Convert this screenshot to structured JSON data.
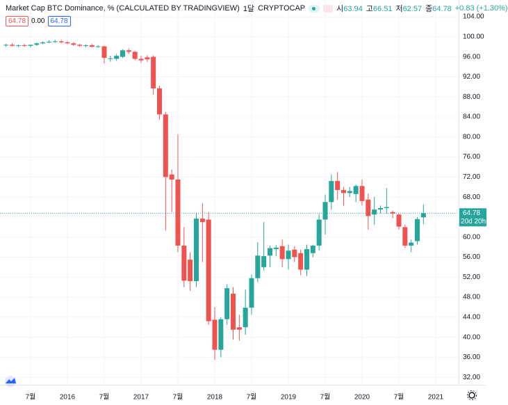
{
  "header": {
    "title": "Market Cap BTC Dominance, % (CALCULATED BY TRADINGVIEW)",
    "interval": "1달",
    "exchange": "CRYPTOCAP",
    "ohlc_labels": [
      "시",
      "고",
      "저",
      "종"
    ],
    "change": "+0.83 (+1.30%)",
    "zero": "0.00"
  },
  "chart_data": {
    "type": "candlestick",
    "up_color": "#26a69a",
    "down_color": "#ef5350",
    "grid": true,
    "countdown": "20d 20h",
    "x": [
      "2015-03",
      "2015-04",
      "2015-05",
      "2015-06",
      "2015-07",
      "2015-08",
      "2015-09",
      "2015-10",
      "2015-11",
      "2015-12",
      "2016-01",
      "2016-02",
      "2016-03",
      "2016-04",
      "2016-05",
      "2016-06",
      "2016-07",
      "2016-08",
      "2016-09",
      "2016-10",
      "2016-11",
      "2016-12",
      "2017-01",
      "2017-02",
      "2017-03",
      "2017-04",
      "2017-05",
      "2017-06",
      "2017-07",
      "2017-08",
      "2017-09",
      "2017-10",
      "2017-11",
      "2017-12",
      "2018-01",
      "2018-02",
      "2018-03",
      "2018-04",
      "2018-05",
      "2018-06",
      "2018-07",
      "2018-08",
      "2018-09",
      "2018-10",
      "2018-11",
      "2018-12",
      "2019-01",
      "2019-02",
      "2019-03",
      "2019-04",
      "2019-05",
      "2019-06",
      "2019-07",
      "2019-08",
      "2019-09",
      "2019-10",
      "2019-11",
      "2019-12",
      "2020-01",
      "2020-02",
      "2020-03",
      "2020-04",
      "2020-05",
      "2020-06",
      "2020-07",
      "2020-08",
      "2020-09",
      "2020-10",
      "2020-11"
    ],
    "open": [
      98.3,
      98.4,
      98.2,
      98.3,
      98.2,
      98.4,
      98.7,
      98.9,
      99.0,
      99.1,
      98.9,
      98.7,
      98.4,
      98.2,
      98.3,
      98.0,
      98.1,
      95.6,
      95.6,
      96.0,
      97.3,
      97.0,
      95.6,
      95.9,
      96.0,
      89.7,
      84.5,
      72.5,
      71.5,
      58.3,
      55.5,
      51.2,
      63.7,
      63.5,
      43.5,
      37.5,
      43.6,
      48.7,
      42.0,
      42.0,
      45.9,
      51.8,
      54.0,
      56.3,
      57.6,
      58.2,
      55.6,
      57.5,
      56.8,
      53.5,
      56.8,
      58.3,
      63.5,
      67.0,
      71.2,
      69.4,
      68.8,
      68.6,
      70.2,
      67.5,
      64.5,
      65.5,
      65.8,
      65.0,
      64.5,
      62.0,
      58.3,
      59.2,
      63.94
    ],
    "high": [
      98.6,
      98.7,
      98.5,
      98.6,
      98.5,
      98.9,
      99.1,
      99.3,
      99.4,
      99.4,
      99.1,
      98.9,
      98.6,
      98.5,
      98.6,
      98.3,
      98.2,
      96.2,
      96.6,
      97.5,
      97.6,
      97.2,
      96.2,
      96.3,
      96.3,
      90.2,
      85.0,
      73.5,
      80.5,
      62.0,
      57.0,
      64.8,
      66.8,
      65.0,
      46.0,
      44.0,
      50.6,
      50.0,
      44.5,
      49.5,
      52.5,
      59.0,
      63.0,
      58.3,
      58.4,
      59.5,
      58.5,
      58.2,
      57.5,
      58.5,
      58.5,
      64.6,
      68.5,
      72.5,
      73.0,
      70.0,
      70.0,
      70.5,
      71.5,
      68.7,
      68.0,
      66.3,
      69.8,
      65.3,
      64.7,
      62.5,
      59.5,
      64.0,
      66.51
    ],
    "low": [
      98.0,
      98.1,
      97.9,
      98.0,
      97.9,
      98.2,
      98.5,
      98.7,
      98.8,
      98.7,
      98.5,
      98.2,
      98.0,
      97.9,
      97.9,
      97.8,
      94.7,
      95.0,
      95.2,
      95.8,
      96.6,
      95.3,
      94.8,
      95.0,
      88.4,
      83.5,
      61.3,
      65.0,
      57.0,
      50.0,
      49.3,
      50.0,
      55.0,
      42.5,
      35.5,
      36.0,
      42.5,
      39.5,
      39.3,
      40.5,
      44.5,
      51.0,
      53.3,
      54.0,
      56.2,
      54.0,
      53.5,
      55.0,
      52.4,
      52.2,
      56.0,
      57.3,
      60.5,
      65.5,
      67.5,
      66.3,
      68.0,
      67.0,
      66.3,
      61.5,
      62.5,
      64.7,
      64.7,
      63.8,
      61.5,
      57.8,
      57.0,
      58.5,
      62.57
    ],
    "close": [
      98.4,
      98.2,
      98.3,
      98.2,
      98.4,
      98.7,
      98.9,
      99.0,
      99.1,
      98.9,
      98.7,
      98.4,
      98.2,
      98.3,
      98.0,
      98.1,
      95.8,
      95.7,
      96.2,
      97.3,
      97.0,
      95.6,
      95.3,
      95.5,
      89.7,
      84.5,
      72.0,
      71.5,
      58.3,
      51.3,
      51.2,
      63.7,
      63.0,
      43.2,
      37.5,
      43.6,
      49.8,
      41.5,
      41.5,
      45.9,
      51.8,
      56.3,
      56.2,
      57.8,
      57.9,
      55.6,
      57.3,
      56.0,
      53.5,
      57.6,
      58.3,
      63.5,
      67.0,
      71.2,
      69.4,
      68.8,
      69.2,
      70.2,
      67.2,
      64.2,
      65.5,
      65.8,
      66.0,
      64.7,
      62.1,
      58.3,
      58.9,
      63.6,
      64.78
    ],
    "ylim": [
      30.5,
      107.35
    ],
    "yticks": [
      {
        "value": 104,
        "label": "104.00"
      },
      {
        "value": 100,
        "label": "100.00"
      },
      {
        "value": 96,
        "label": "96.00"
      },
      {
        "value": 92,
        "label": "92.00"
      },
      {
        "value": 88,
        "label": "88.00"
      },
      {
        "value": 84,
        "label": "84.00"
      },
      {
        "value": 80,
        "label": "80.00"
      },
      {
        "value": 76,
        "label": "76.00"
      },
      {
        "value": 72,
        "label": "72.00"
      },
      {
        "value": 68,
        "label": "68.00"
      },
      {
        "value": 64,
        "label": "64.00"
      },
      {
        "value": 60,
        "label": "60.00"
      },
      {
        "value": 56,
        "label": "56.00"
      },
      {
        "value": 52,
        "label": "52.00"
      },
      {
        "value": 48,
        "label": "48.00"
      },
      {
        "value": 44,
        "label": "44.00"
      },
      {
        "value": 40,
        "label": "40.00"
      },
      {
        "value": 36,
        "label": "36.00"
      },
      {
        "value": 32,
        "label": "32.00"
      }
    ],
    "xticks": [
      {
        "value": "2015-07",
        "label": "7월"
      },
      {
        "value": "2016-01",
        "label": "2016"
      },
      {
        "value": "2016-07",
        "label": "7월"
      },
      {
        "value": "2017-01",
        "label": "2017"
      },
      {
        "value": "2017-07",
        "label": "7월"
      },
      {
        "value": "2018-01",
        "label": "2018"
      },
      {
        "value": "2018-07",
        "label": "7월"
      },
      {
        "value": "2019-01",
        "label": "2019"
      },
      {
        "value": "2019-07",
        "label": "7월"
      },
      {
        "value": "2020-01",
        "label": "2020"
      },
      {
        "value": "2020-07",
        "label": "7월"
      },
      {
        "value": "2021-01",
        "label": "2021"
      }
    ]
  }
}
